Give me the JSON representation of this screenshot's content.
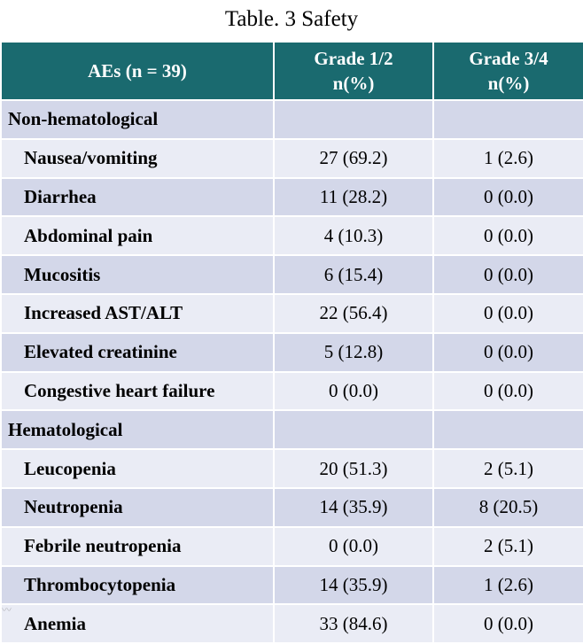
{
  "caption": "Table. 3 Safety",
  "header": {
    "col1": "AEs (n = 39)",
    "col2_line1": "Grade 1/2",
    "col2_line2": "n(%)",
    "col3_line1": "Grade 3/4",
    "col3_line2": "n(%)"
  },
  "rows": [
    {
      "type": "section",
      "label": "Non-hematological",
      "g12": "",
      "g34": ""
    },
    {
      "type": "item",
      "label": "Nausea/vomiting",
      "g12": "27 (69.2)",
      "g34": "1 (2.6)"
    },
    {
      "type": "item",
      "label": "Diarrhea",
      "g12": "11 (28.2)",
      "g34": "0 (0.0)"
    },
    {
      "type": "item",
      "label": "Abdominal pain",
      "g12": "4 (10.3)",
      "g34": "0 (0.0)"
    },
    {
      "type": "item",
      "label": "Mucositis",
      "g12": "6 (15.4)",
      "g34": "0 (0.0)"
    },
    {
      "type": "item",
      "label": "Increased AST/ALT",
      "g12": "22 (56.4)",
      "g34": "0 (0.0)"
    },
    {
      "type": "item",
      "label": "Elevated creatinine",
      "g12": "5 (12.8)",
      "g34": "0 (0.0)"
    },
    {
      "type": "item",
      "label": "Congestive heart failure",
      "g12": "0 (0.0)",
      "g34": "0 (0.0)"
    },
    {
      "type": "section",
      "label": "Hematological",
      "g12": "",
      "g34": ""
    },
    {
      "type": "item",
      "label": "Leucopenia",
      "g12": "20 (51.3)",
      "g34": "2 (5.1)"
    },
    {
      "type": "item",
      "label": "Neutropenia",
      "g12": "14 (35.9)",
      "g34": "8 (20.5)"
    },
    {
      "type": "item",
      "label": "Febrile neutropenia",
      "g12": "0 (0.0)",
      "g34": "2 (5.1)"
    },
    {
      "type": "item",
      "label": "Thrombocytopenia",
      "g12": "14 (35.9)",
      "g34": "1 (2.6)"
    },
    {
      "type": "item",
      "label": "Anemia",
      "g12": "33 (84.6)",
      "g34": "0 (0.0)"
    }
  ],
  "colors": {
    "header_bg": "#1a6a6f",
    "row_dark": "#d3d7e9",
    "row_light": "#eaecf5"
  }
}
